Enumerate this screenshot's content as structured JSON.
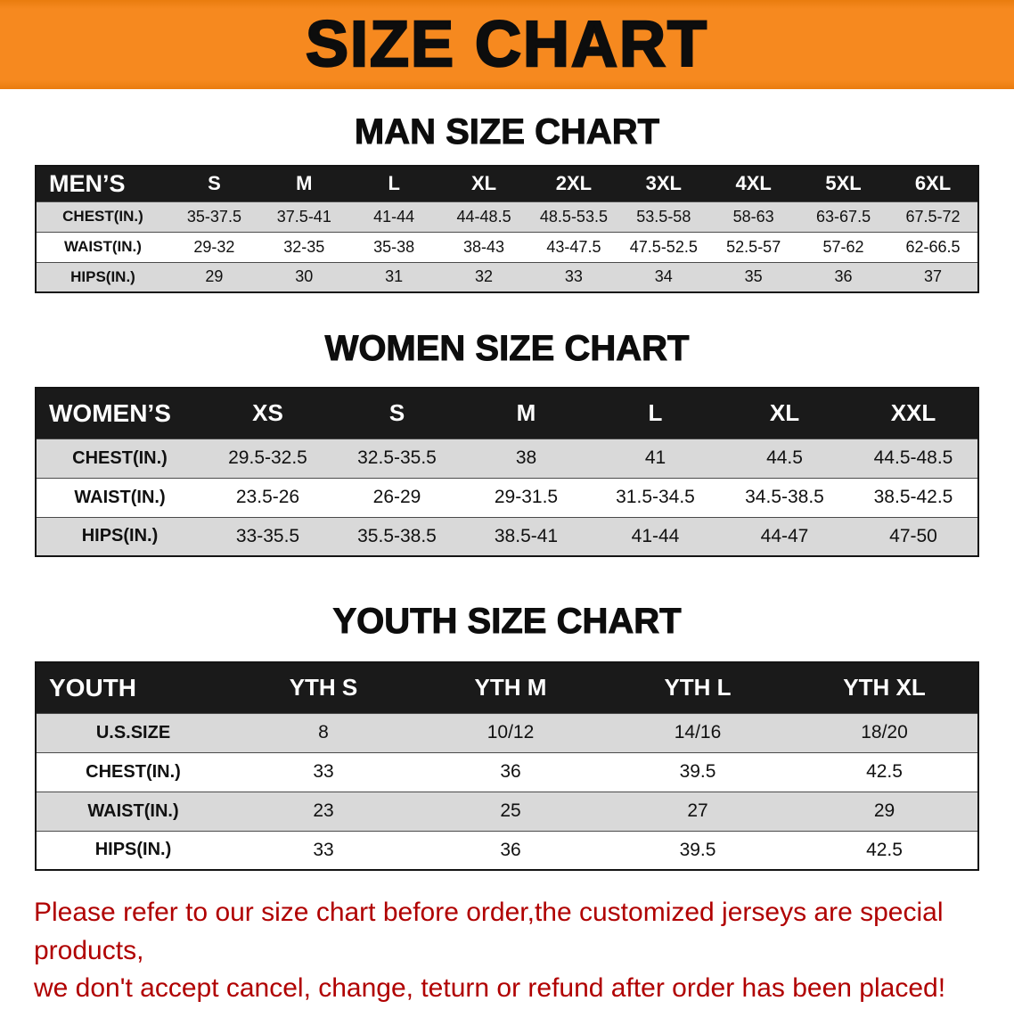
{
  "banner": {
    "title": "SIZE CHART"
  },
  "sections": [
    {
      "id": "men",
      "heading": "MAN SIZE CHART",
      "table": {
        "header": [
          "MEN’S",
          "S",
          "M",
          "L",
          "XL",
          "2XL",
          "3XL",
          "4XL",
          "5XL",
          "6XL"
        ],
        "rows": [
          {
            "label": "CHEST(IN.)",
            "values": [
              "35-37.5",
              "37.5-41",
              "41-44",
              "44-48.5",
              "48.5-53.5",
              "53.5-58",
              "58-63",
              "63-67.5",
              "67.5-72"
            ]
          },
          {
            "label": "WAIST(IN.)",
            "values": [
              "29-32",
              "32-35",
              "35-38",
              "38-43",
              "43-47.5",
              "47.5-52.5",
              "52.5-57",
              "57-62",
              "62-66.5"
            ]
          },
          {
            "label": "HIPS(IN.)",
            "values": [
              "29",
              "30",
              "31",
              "32",
              "33",
              "34",
              "35",
              "36",
              "37"
            ]
          }
        ]
      }
    },
    {
      "id": "women",
      "heading": "WOMEN SIZE CHART",
      "table": {
        "header": [
          "WOMEN’S",
          "XS",
          "S",
          "M",
          "L",
          "XL",
          "XXL"
        ],
        "rows": [
          {
            "label": "CHEST(IN.)",
            "values": [
              "29.5-32.5",
              "32.5-35.5",
              "38",
              "41",
              "44.5",
              "44.5-48.5"
            ]
          },
          {
            "label": "WAIST(IN.)",
            "values": [
              "23.5-26",
              "26-29",
              "29-31.5",
              "31.5-34.5",
              "34.5-38.5",
              "38.5-42.5"
            ]
          },
          {
            "label": "HIPS(IN.)",
            "values": [
              "33-35.5",
              "35.5-38.5",
              "38.5-41",
              "41-44",
              "44-47",
              "47-50"
            ]
          }
        ]
      }
    },
    {
      "id": "youth",
      "heading": "YOUTH SIZE CHART",
      "table": {
        "header": [
          "YOUTH",
          "YTH S",
          "YTH M",
          "YTH L",
          "YTH XL"
        ],
        "rows": [
          {
            "label": "U.S.SIZE",
            "values": [
              "8",
              "10/12",
              "14/16",
              "18/20"
            ]
          },
          {
            "label": "CHEST(IN.)",
            "values": [
              "33",
              "36",
              "39.5",
              "42.5"
            ]
          },
          {
            "label": "WAIST(IN.)",
            "values": [
              "23",
              "25",
              "27",
              "29"
            ]
          },
          {
            "label": "HIPS(IN.)",
            "values": [
              "33",
              "36",
              "39.5",
              "42.5"
            ]
          }
        ]
      }
    }
  ],
  "notice": {
    "lines": [
      "Please refer to our size chart before order,the customized jerseys are special products,",
      "we don't accept cancel, change, teturn or refund after order has been placed!"
    ]
  },
  "colors": {
    "banner_bg": "#F6891F",
    "table_header_bg": "#1A1A1A",
    "row_alt_bg": "#D9D9D9",
    "notice_text": "#B00000"
  }
}
